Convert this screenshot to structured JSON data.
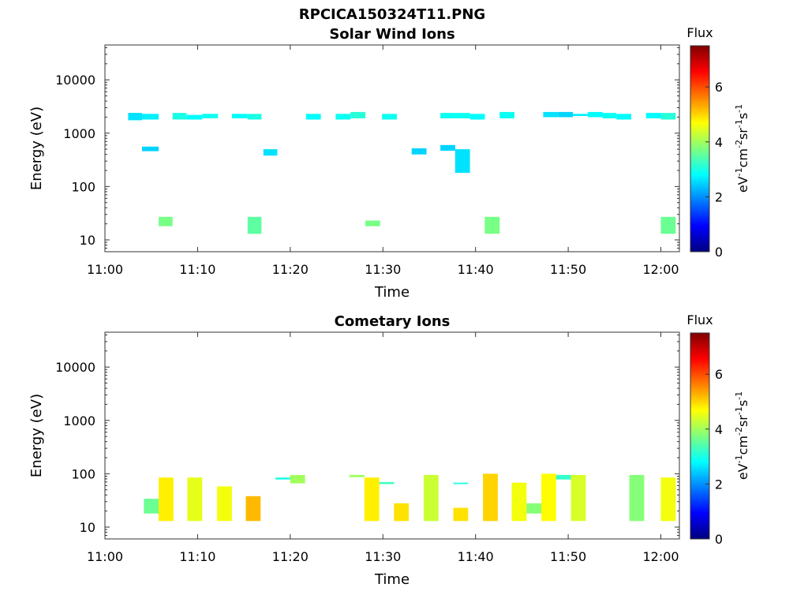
{
  "figure": {
    "main_title": "RPCICA150324T11.PNG"
  },
  "colormap": {
    "stops": [
      "#00007f",
      "#0000ff",
      "#007fff",
      "#00ffff",
      "#7fff7f",
      "#ffff00",
      "#ff7f00",
      "#ff0000",
      "#7f0000"
    ]
  },
  "chart_data": [
    {
      "type": "heatmap",
      "title": "Solar Wind Ions",
      "xlabel": "Time",
      "ylabel": "Energy (eV)",
      "y_scale": "log",
      "xlim": [
        "11:00",
        "12:02"
      ],
      "ylim": [
        6,
        45000
      ],
      "xticks": [
        "11:00",
        "11:10",
        "11:20",
        "11:30",
        "11:40",
        "11:50",
        "12:00"
      ],
      "yticks": [
        10,
        100,
        1000,
        10000
      ],
      "ytick_labels": [
        "10",
        "100",
        "1000",
        "10000"
      ],
      "colorbar": {
        "label": "Flux",
        "unit": "eV-1cm-2sr-1s-1",
        "ticks": [
          "0",
          "2",
          "4",
          "6"
        ],
        "range": [
          0,
          7.5
        ]
      },
      "cells": [
        {
          "t0": "11:02.5",
          "t1": "11:04.0",
          "e0": 1750,
          "e1": 2400,
          "flux": 2.6
        },
        {
          "t0": "11:04.0",
          "t1": "11:05.8",
          "e0": 1800,
          "e1": 2300,
          "flux": 2.7
        },
        {
          "t0": "11:04.0",
          "t1": "11:05.8",
          "e0": 460,
          "e1": 560,
          "flux": 2.5
        },
        {
          "t0": "11:05.8",
          "t1": "11:07.3",
          "e0": 18,
          "e1": 27,
          "flux": 3.7
        },
        {
          "t0": "11:07.3",
          "t1": "11:08.8",
          "e0": 1800,
          "e1": 2400,
          "flux": 3.0
        },
        {
          "t0": "11:08.8",
          "t1": "11:10.5",
          "e0": 1800,
          "e1": 2200,
          "flux": 2.8
        },
        {
          "t0": "11:10.5",
          "t1": "11:12.2",
          "e0": 1900,
          "e1": 2300,
          "flux": 2.9
        },
        {
          "t0": "11:13.7",
          "t1": "11:15.4",
          "e0": 1900,
          "e1": 2300,
          "flux": 2.8
        },
        {
          "t0": "11:15.4",
          "t1": "11:16.9",
          "e0": 1800,
          "e1": 2300,
          "flux": 3.0
        },
        {
          "t0": "11:15.4",
          "t1": "11:16.9",
          "e0": 13,
          "e1": 27,
          "flux": 3.5
        },
        {
          "t0": "11:17.1",
          "t1": "11:18.6",
          "e0": 380,
          "e1": 500,
          "flux": 2.6
        },
        {
          "t0": "11:21.7",
          "t1": "11:23.3",
          "e0": 1800,
          "e1": 2300,
          "flux": 2.8
        },
        {
          "t0": "11:24.9",
          "t1": "11:26.5",
          "e0": 1800,
          "e1": 2300,
          "flux": 2.9
        },
        {
          "t0": "11:26.5",
          "t1": "11:28.1",
          "e0": 1900,
          "e1": 2500,
          "flux": 3.1
        },
        {
          "t0": "11:28.1",
          "t1": "11:29.7",
          "e0": 18,
          "e1": 23,
          "flux": 3.7
        },
        {
          "t0": "11:29.9",
          "t1": "11:31.5",
          "e0": 1800,
          "e1": 2300,
          "flux": 2.9
        },
        {
          "t0": "11:33.1",
          "t1": "11:34.7",
          "e0": 400,
          "e1": 520,
          "flux": 2.5
        },
        {
          "t0": "11:36.2",
          "t1": "11:37.8",
          "e0": 1900,
          "e1": 2400,
          "flux": 2.9
        },
        {
          "t0": "11:36.2",
          "t1": "11:37.8",
          "e0": 470,
          "e1": 600,
          "flux": 2.5
        },
        {
          "t0": "11:37.8",
          "t1": "11:39.4",
          "e0": 1900,
          "e1": 2400,
          "flux": 2.9
        },
        {
          "t0": "11:37.8",
          "t1": "11:39.4",
          "e0": 180,
          "e1": 500,
          "flux": 2.6
        },
        {
          "t0": "11:39.4",
          "t1": "11:41.0",
          "e0": 1800,
          "e1": 2300,
          "flux": 2.8
        },
        {
          "t0": "11:41.0",
          "t1": "11:42.6",
          "e0": 13,
          "e1": 27,
          "flux": 3.7
        },
        {
          "t0": "11:42.6",
          "t1": "11:44.2",
          "e0": 1900,
          "e1": 2500,
          "flux": 2.9
        },
        {
          "t0": "11:47.3",
          "t1": "11:48.9",
          "e0": 2000,
          "e1": 2500,
          "flux": 2.6
        },
        {
          "t0": "11:48.9",
          "t1": "11:50.5",
          "e0": 2000,
          "e1": 2500,
          "flux": 2.5
        },
        {
          "t0": "11:50.5",
          "t1": "11:52.1",
          "e0": 2100,
          "e1": 2300,
          "flux": 2.7
        },
        {
          "t0": "11:52.1",
          "t1": "11:53.7",
          "e0": 2000,
          "e1": 2500,
          "flux": 2.8
        },
        {
          "t0": "11:53.7",
          "t1": "11:55.2",
          "e0": 1900,
          "e1": 2400,
          "flux": 2.9
        },
        {
          "t0": "11:55.2",
          "t1": "11:56.8",
          "e0": 1800,
          "e1": 2300,
          "flux": 2.8
        },
        {
          "t0": "11:58.4",
          "t1": "12:00.0",
          "e0": 1900,
          "e1": 2400,
          "flux": 2.8
        },
        {
          "t0": "12:00.0",
          "t1": "12:01.6",
          "e0": 1800,
          "e1": 2400,
          "flux": 3.1
        },
        {
          "t0": "12:00.0",
          "t1": "12:01.6",
          "e0": 13,
          "e1": 27,
          "flux": 3.6
        }
      ]
    },
    {
      "type": "heatmap",
      "title": "Cometary Ions",
      "xlabel": "Time",
      "ylabel": "Energy (eV)",
      "y_scale": "log",
      "xlim": [
        "11:00",
        "12:02"
      ],
      "ylim": [
        6,
        45000
      ],
      "xticks": [
        "11:00",
        "11:10",
        "11:20",
        "11:30",
        "11:40",
        "11:50",
        "12:00"
      ],
      "yticks": [
        10,
        100,
        1000,
        10000
      ],
      "ytick_labels": [
        "10",
        "100",
        "1000",
        "10000"
      ],
      "colorbar": {
        "label": "Flux",
        "unit": "eV-1cm-2sr-1s-1",
        "ticks": [
          "0",
          "2",
          "4",
          "6"
        ],
        "range": [
          0,
          7.5
        ]
      },
      "cells": [
        {
          "t0": "11:04.2",
          "t1": "11:05.8",
          "e0": 18,
          "e1": 34,
          "flux": 3.6
        },
        {
          "t0": "11:05.8",
          "t1": "11:07.4",
          "e0": 13,
          "e1": 85,
          "flux": 4.8
        },
        {
          "t0": "11:08.9",
          "t1": "11:10.5",
          "e0": 13,
          "e1": 85,
          "flux": 4.5
        },
        {
          "t0": "11:12.1",
          "t1": "11:13.7",
          "e0": 13,
          "e1": 58,
          "flux": 4.6
        },
        {
          "t0": "11:15.2",
          "t1": "11:16.8",
          "e0": 13,
          "e1": 38,
          "flux": 5.2
        },
        {
          "t0": "11:18.4",
          "t1": "11:20.0",
          "e0": 78,
          "e1": 85,
          "flux": 3.0
        },
        {
          "t0": "11:20.0",
          "t1": "11:21.6",
          "e0": 66,
          "e1": 95,
          "flux": 4.0
        },
        {
          "t0": "11:26.4",
          "t1": "11:28.0",
          "e0": 86,
          "e1": 95,
          "flux": 4.0
        },
        {
          "t0": "11:28.0",
          "t1": "11:29.6",
          "e0": 13,
          "e1": 85,
          "flux": 4.8
        },
        {
          "t0": "11:29.6",
          "t1": "11:31.2",
          "e0": 64,
          "e1": 70,
          "flux": 3.3
        },
        {
          "t0": "11:31.2",
          "t1": "11:32.8",
          "e0": 13,
          "e1": 28,
          "flux": 4.9
        },
        {
          "t0": "11:34.4",
          "t1": "11:36.0",
          "e0": 13,
          "e1": 95,
          "flux": 4.3
        },
        {
          "t0": "11:37.6",
          "t1": "11:39.2",
          "e0": 13,
          "e1": 23,
          "flux": 4.9
        },
        {
          "t0": "11:37.6",
          "t1": "11:39.2",
          "e0": 64,
          "e1": 68,
          "flux": 3.0
        },
        {
          "t0": "11:40.8",
          "t1": "11:42.4",
          "e0": 13,
          "e1": 100,
          "flux": 5.0
        },
        {
          "t0": "11:43.9",
          "t1": "11:45.5",
          "e0": 13,
          "e1": 68,
          "flux": 4.6
        },
        {
          "t0": "11:45.5",
          "t1": "11:47.1",
          "e0": 18,
          "e1": 28,
          "flux": 3.8
        },
        {
          "t0": "11:47.1",
          "t1": "11:48.7",
          "e0": 13,
          "e1": 100,
          "flux": 4.7
        },
        {
          "t0": "11:48.7",
          "t1": "11:50.3",
          "e0": 78,
          "e1": 95,
          "flux": 3.2
        },
        {
          "t0": "11:50.3",
          "t1": "11:51.9",
          "e0": 13,
          "e1": 95,
          "flux": 4.4
        },
        {
          "t0": "11:56.6",
          "t1": "11:58.2",
          "e0": 13,
          "e1": 95,
          "flux": 3.8
        },
        {
          "t0": "12:00.0",
          "t1": "12:01.6",
          "e0": 13,
          "e1": 85,
          "flux": 4.6
        }
      ]
    }
  ]
}
